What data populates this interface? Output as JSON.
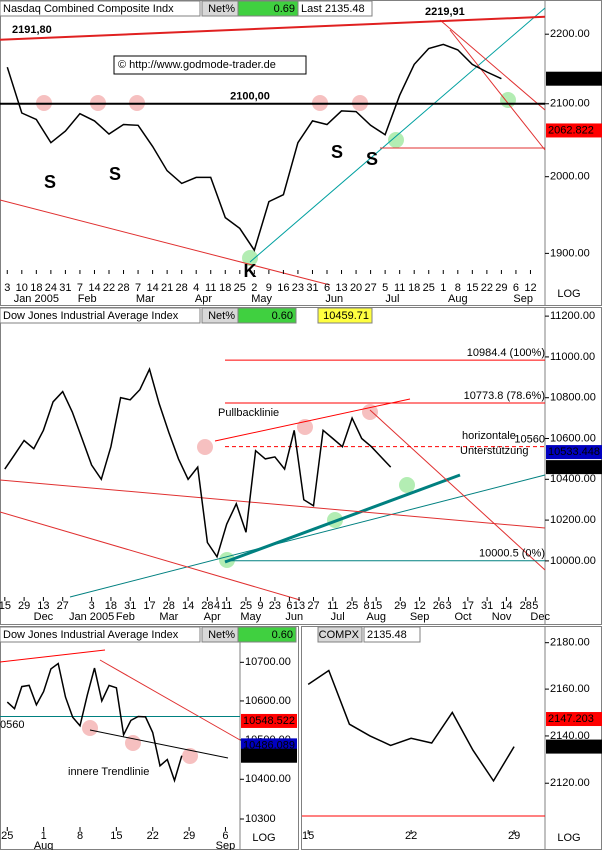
{
  "chart_data": [
    {
      "type": "line",
      "title": "Nasdaq Combined Composite Indx",
      "net_label": "Net%",
      "net": {
        "value": 0.69,
        "label": "0.69"
      },
      "last": {
        "value": 2135.48,
        "label": "Last 2135.48"
      },
      "log_scale": true,
      "axis_note": "LOG",
      "color": "#000000",
      "x": [
        0,
        1,
        2,
        3,
        4,
        5,
        6,
        7,
        8,
        9,
        10,
        11,
        12,
        13,
        14,
        15,
        16,
        17,
        18,
        19,
        20,
        21,
        22,
        23,
        24,
        25,
        26,
        27,
        28,
        29,
        30,
        31,
        32,
        33,
        34
      ],
      "values": [
        2152,
        2087,
        2078,
        2046,
        2062,
        2086,
        2076,
        2058,
        2071,
        2070,
        2041,
        2008,
        1991,
        1999,
        1999,
        1946,
        1932,
        1904,
        1967,
        1976,
        2046,
        2076,
        2071,
        2090,
        2089,
        2070,
        2057,
        2112,
        2156,
        2179,
        2185,
        2177,
        2156,
        2145,
        2135.48
      ],
      "xlim": [
        -0.5,
        37
      ],
      "xticks": [
        {
          "value": 0,
          "label": "3"
        },
        {
          "value": 1,
          "label": "10"
        },
        {
          "value": 2,
          "label": "18"
        },
        {
          "value": 3,
          "label": "24"
        },
        {
          "value": 4,
          "label": "31"
        },
        {
          "value": 5,
          "label": "7"
        },
        {
          "value": 6,
          "label": "14"
        },
        {
          "value": 7,
          "label": "22"
        },
        {
          "value": 8,
          "label": "28"
        },
        {
          "value": 9,
          "label": "7"
        },
        {
          "value": 10,
          "label": "14"
        },
        {
          "value": 11,
          "label": "21"
        },
        {
          "value": 12,
          "label": "28"
        },
        {
          "value": 13,
          "label": "4"
        },
        {
          "value": 14,
          "label": "11"
        },
        {
          "value": 15,
          "label": "18"
        },
        {
          "value": 16,
          "label": "25"
        },
        {
          "value": 17,
          "label": "2"
        },
        {
          "value": 18,
          "label": "9"
        },
        {
          "value": 19,
          "label": "16"
        },
        {
          "value": 20,
          "label": "23"
        },
        {
          "value": 21,
          "label": "31"
        },
        {
          "value": 22,
          "label": "6"
        },
        {
          "value": 23,
          "label": "13"
        },
        {
          "value": 24,
          "label": "20"
        },
        {
          "value": 25,
          "label": "27"
        },
        {
          "value": 26,
          "label": "5"
        },
        {
          "value": 27,
          "label": "11"
        },
        {
          "value": 28,
          "label": "18"
        },
        {
          "value": 29,
          "label": "25"
        },
        {
          "value": 30,
          "label": "1"
        },
        {
          "value": 31,
          "label": "8"
        },
        {
          "value": 32,
          "label": "15"
        },
        {
          "value": 33,
          "label": "22"
        },
        {
          "value": 34,
          "label": "29"
        },
        {
          "value": 35,
          "label": "6"
        },
        {
          "value": 36,
          "label": "12"
        }
      ],
      "month_ticks": [
        {
          "value": 2,
          "label": "Jan 2005"
        },
        {
          "value": 5.5,
          "label": "Feb"
        },
        {
          "value": 9.5,
          "label": "Mar"
        },
        {
          "value": 13.5,
          "label": "Apr"
        },
        {
          "value": 17.5,
          "label": "May"
        },
        {
          "value": 22.5,
          "label": "Jun"
        },
        {
          "value": 26.5,
          "label": "Jul"
        },
        {
          "value": 31,
          "label": "Aug"
        },
        {
          "value": 35.5,
          "label": "Sep"
        }
      ],
      "ylim": [
        1879,
        2250.9
      ],
      "yticks": [
        {
          "value": 1900,
          "label": "1900.00"
        },
        {
          "value": 2000,
          "label": "2000.00"
        },
        {
          "value": 2100,
          "label": "2100.00"
        },
        {
          "value": 2200,
          "label": "2200.00"
        }
      ],
      "hlines": [
        {
          "value": 2100,
          "label": "2100,00",
          "color": "#000000"
        }
      ],
      "trendline": [
        {
          "value": 2191.8,
          "label": "2191,80"
        },
        {
          "value": 2219.91,
          "label": "2219,91"
        }
      ],
      "price_labels": [
        {
          "value": 2135.48,
          "label": "2135.48",
          "color": "#000000"
        },
        {
          "value": 2062.822,
          "label": "2062.822",
          "color": "#ff0000"
        }
      ],
      "annotations": [
        "© http://www.godmode-trader.de",
        "S",
        "S",
        "S",
        "S",
        "K"
      ]
    },
    {
      "type": "line",
      "title": "Dow Jones Industrial Average Index",
      "net_label": "Net%",
      "net": {
        "value": 0.6,
        "label": "0.60"
      },
      "last": {
        "value": 10459.71,
        "label": "10459.71"
      },
      "log_scale": false,
      "color": "#000000",
      "x": [
        0,
        1,
        2,
        3,
        4,
        5,
        6,
        7,
        8,
        9,
        10,
        11,
        12,
        13,
        14,
        15,
        16,
        17,
        18,
        19,
        20,
        21,
        22,
        23,
        24,
        25,
        26,
        27,
        28,
        29,
        30,
        31,
        32,
        33,
        34,
        35,
        36,
        37,
        38,
        39,
        40
      ],
      "values": [
        10450,
        10520,
        10590,
        10550,
        10640,
        10780,
        10830,
        10730,
        10600,
        10470,
        10400,
        10560,
        10800,
        10790,
        10840,
        10940,
        10770,
        10630,
        10500,
        10400,
        10460,
        10090,
        10020,
        10180,
        10280,
        10140,
        10540,
        10500,
        10510,
        10450,
        10640,
        10300,
        10270,
        10640,
        10600,
        10560,
        10700,
        10600,
        10560,
        10510,
        10459.71
      ],
      "xlim": [
        -0.5,
        56
      ],
      "xticks": [
        {
          "value": 0,
          "label": "15"
        },
        {
          "value": 2,
          "label": "29"
        },
        {
          "value": 4,
          "label": "13"
        },
        {
          "value": 6,
          "label": "27"
        },
        {
          "value": 9,
          "label": "3"
        },
        {
          "value": 11,
          "label": "18"
        },
        {
          "value": 13,
          "label": "31"
        },
        {
          "value": 15,
          "label": "17"
        },
        {
          "value": 17,
          "label": "28"
        },
        {
          "value": 19,
          "label": "14"
        },
        {
          "value": 21,
          "label": "28"
        },
        {
          "value": 22,
          "label": "4"
        },
        {
          "value": 23,
          "label": "11"
        },
        {
          "value": 25,
          "label": "25"
        },
        {
          "value": 26.5,
          "label": "9"
        },
        {
          "value": 28,
          "label": "23"
        },
        {
          "value": 29.5,
          "label": "6"
        },
        {
          "value": 30.5,
          "label": "13"
        },
        {
          "value": 32,
          "label": "27"
        },
        {
          "value": 34,
          "label": "11"
        },
        {
          "value": 36,
          "label": "25"
        },
        {
          "value": 37.5,
          "label": "8"
        },
        {
          "value": 38.5,
          "label": "15"
        },
        {
          "value": 41,
          "label": "29"
        },
        {
          "value": 43,
          "label": "12"
        },
        {
          "value": 45,
          "label": "26"
        },
        {
          "value": 46,
          "label": "3"
        },
        {
          "value": 48,
          "label": "17"
        },
        {
          "value": 50,
          "label": "31"
        },
        {
          "value": 52,
          "label": "14"
        },
        {
          "value": 54,
          "label": "28"
        },
        {
          "value": 55,
          "label": "5"
        }
      ],
      "month_ticks": [
        {
          "value": 4,
          "label": "Dec"
        },
        {
          "value": 9,
          "label": "Jan 2005"
        },
        {
          "value": 12.5,
          "label": "Feb"
        },
        {
          "value": 17,
          "label": "Mar"
        },
        {
          "value": 21.5,
          "label": "Apr"
        },
        {
          "value": 25.5,
          "label": "May"
        },
        {
          "value": 30,
          "label": "Jun"
        },
        {
          "value": 34.5,
          "label": "Jul"
        },
        {
          "value": 38.5,
          "label": "Aug"
        },
        {
          "value": 43,
          "label": "Sep"
        },
        {
          "value": 47.5,
          "label": "Oct"
        },
        {
          "value": 51.5,
          "label": "Nov"
        },
        {
          "value": 55.5,
          "label": "Dec"
        }
      ],
      "ylim": [
        9823,
        11230
      ],
      "yticks": [
        {
          "value": 10000,
          "label": "10000.00"
        },
        {
          "value": 10200,
          "label": "10200.00"
        },
        {
          "value": 10400,
          "label": "10400.00"
        },
        {
          "value": 10600,
          "label": "10600.00"
        },
        {
          "value": 10800,
          "label": "10800.00"
        },
        {
          "value": 11000,
          "label": "11000.00"
        },
        {
          "value": 11200,
          "label": "11200.00"
        }
      ],
      "hlines": [
        {
          "value": 10984.4,
          "label": "10984.4 (100%)",
          "color": "#ff0000"
        },
        {
          "value": 10773.8,
          "label": "10773.8 (78.6%)",
          "color": "#ff0000"
        },
        {
          "value": 10560,
          "label": "10560",
          "color": "#ff0000"
        },
        {
          "value": 10000.5,
          "label": "10000.5 (0%)",
          "color": "#008080"
        }
      ],
      "price_labels": [
        {
          "value": 10533.448,
          "label": "10533.448",
          "color": "#0000c0"
        },
        {
          "value": 10459.71,
          "label": "10459.71",
          "color": "#000000"
        }
      ],
      "annotations": [
        "Pullbacklinie",
        "horizontale",
        "Unterstützung"
      ]
    },
    {
      "type": "line",
      "title": "Dow Jones Industrial Average Index",
      "net_label": "Net%",
      "net": {
        "value": 0.6,
        "label": "0.60"
      },
      "log_scale": true,
      "axis_note": "LOG",
      "color": "#000000",
      "x": [
        0,
        1,
        2,
        3,
        4,
        5,
        6,
        7,
        8,
        9,
        10,
        11,
        12,
        13,
        14,
        15,
        16,
        17,
        18,
        19,
        20,
        21,
        22,
        23,
        24
      ],
      "values": [
        10597,
        10580,
        10637,
        10640,
        10590,
        10624,
        10683,
        10697,
        10610,
        10558,
        10536,
        10615,
        10685,
        10600,
        10640,
        10634,
        10513,
        10550,
        10560,
        10559,
        10519,
        10434,
        10450,
        10397,
        10459.71
      ],
      "xlim": [
        -1,
        32
      ],
      "xticks": [
        {
          "value": 0,
          "label": "25"
        },
        {
          "value": 5,
          "label": "1"
        },
        {
          "value": 10,
          "label": "8"
        },
        {
          "value": 15,
          "label": "15"
        },
        {
          "value": 20,
          "label": "22"
        },
        {
          "value": 25,
          "label": "29"
        },
        {
          "value": 30,
          "label": "6"
        }
      ],
      "month_ticks": [
        {
          "value": 5,
          "label": "Aug"
        },
        {
          "value": 30,
          "label": "Sep"
        }
      ],
      "ylim": [
        10280,
        10753
      ],
      "yticks": [
        {
          "value": 10300,
          "label": "10300"
        },
        {
          "value": 10400,
          "label": "10400.00"
        },
        {
          "value": 10500,
          "label": "10500.00"
        },
        {
          "value": 10600,
          "label": "10600.00"
        },
        {
          "value": 10700,
          "label": "10700.00"
        }
      ],
      "hlines": [
        {
          "value": 10560,
          "color": "#008080"
        }
      ],
      "price_labels": [
        {
          "value": 10548.522,
          "label": "10548.522",
          "color": "#ff0000"
        },
        {
          "value": 10486.089,
          "label": "10486.089",
          "color": "#0000c0"
        },
        {
          "value": 10459.71,
          "label": "10459.71",
          "color": "#000000"
        }
      ],
      "annotations": [
        "0560",
        "innere Trendlinie"
      ]
    },
    {
      "type": "line",
      "title": "COMPX",
      "last": {
        "value": 2135.48,
        "label": "2135.48"
      },
      "log_scale": true,
      "axis_note": "LOG",
      "color": "#000000",
      "x": [
        0,
        1,
        2,
        3,
        4,
        5,
        6,
        7,
        8,
        9,
        10
      ],
      "values": [
        2162,
        2168,
        2145,
        2140,
        2136,
        2139,
        2137,
        2150,
        2134,
        2121,
        2135.48
      ],
      "xlim": [
        -0.3,
        11.5
      ],
      "xticks": [
        {
          "value": 0,
          "label": "15"
        },
        {
          "value": 5,
          "label": "22"
        },
        {
          "value": 10,
          "label": "29"
        }
      ],
      "ylim": [
        2100.4,
        2185.5
      ],
      "yticks": [
        {
          "value": 2120,
          "label": "2120.00"
        },
        {
          "value": 2140,
          "label": "2140.00"
        },
        {
          "value": 2160,
          "label": "2160.00"
        },
        {
          "value": 2180,
          "label": "2180.00"
        }
      ],
      "price_labels": [
        {
          "value": 2147.203,
          "label": "2147.203",
          "color": "#ff0000"
        },
        {
          "value": 2135.48,
          "label": "2135.48",
          "color": "#000000"
        }
      ]
    }
  ]
}
